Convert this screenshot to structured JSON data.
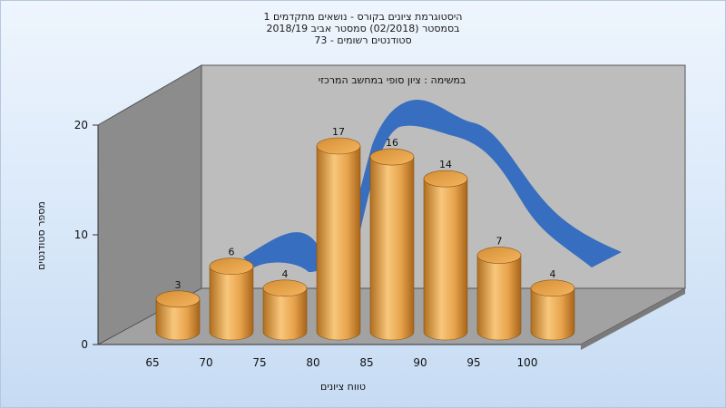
{
  "chart_data": {
    "type": "bar",
    "title": [
      "היסטוגרמת ציונים בקורס - נושאים מתקדמים 1",
      "בסמסטר  (02/2018)  סמסטר אביב 2018/19",
      "סטודנטים רשומים - 73"
    ],
    "annotation": "במשימה : ציון סופי במחשב המרכזי",
    "xlabel": "טווח ציונים",
    "ylabel": "מספר סטודנטים",
    "categories": [
      "65",
      "70",
      "75",
      "80",
      "85",
      "90",
      "95",
      "100"
    ],
    "values": [
      3,
      6,
      4,
      17,
      16,
      14,
      7,
      4
    ],
    "y_ticks": [
      "0",
      "10",
      "20"
    ],
    "ylim": [
      0,
      20
    ],
    "grid": false,
    "colors": {
      "bar": "#e3a449",
      "curve": "#2f69bf",
      "wall": "#bcbcbc",
      "side_wall": "#8a8a8a",
      "floor": "#9c9c9c"
    }
  }
}
